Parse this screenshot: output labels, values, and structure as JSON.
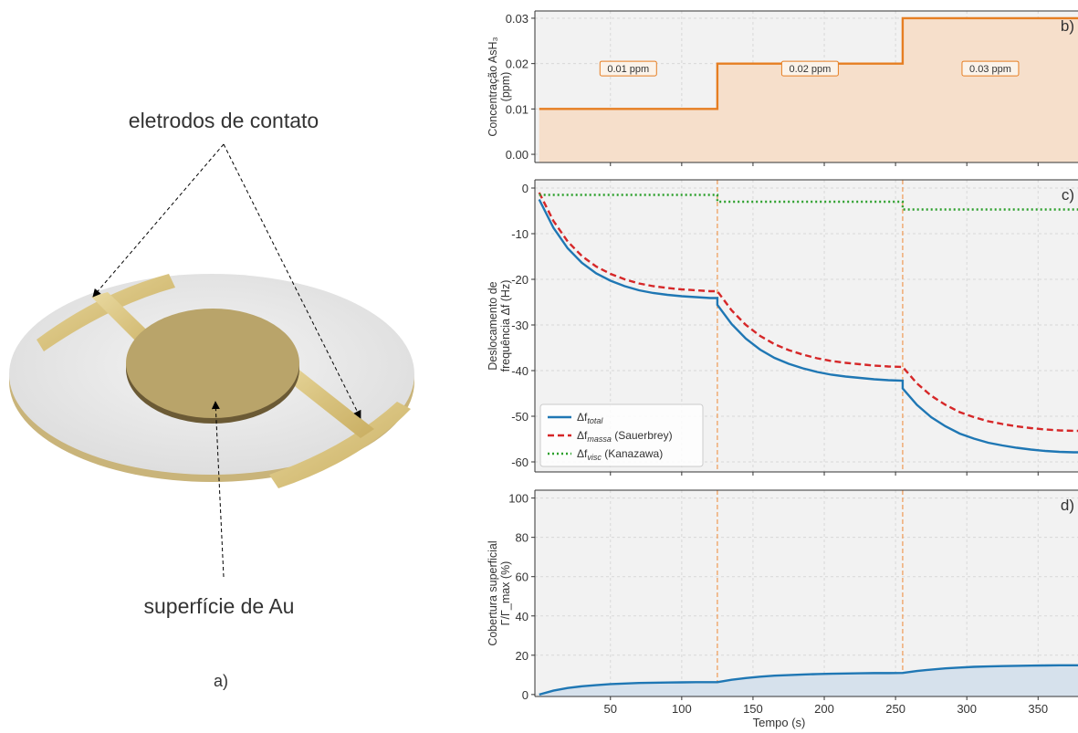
{
  "illustration": {
    "label_electrodes": "eletrodos de contato",
    "label_surface": "superfície de Au",
    "panel": "a)"
  },
  "chart_data": [
    {
      "type": "area",
      "panel": "b)",
      "ylabel": [
        "Concentração AsH₃",
        "(ppm)"
      ],
      "x": [
        0,
        125,
        125,
        255,
        255,
        378
      ],
      "xlim": [
        -3,
        378
      ],
      "xticks": [
        50,
        100,
        150,
        200,
        250,
        300,
        350
      ],
      "ylim": [
        -0.0018,
        0.0316
      ],
      "yticks": [
        {
          "value": 0,
          "label": "0.00"
        },
        0.01,
        0.02,
        0.03
      ],
      "grid": true,
      "series": [
        {
          "color": "#e67e22",
          "fill": "#f6dfcb",
          "dash": "solid",
          "values": [
            0.01,
            0.01,
            0.02,
            0.02,
            0.03,
            0.03
          ]
        }
      ],
      "annotations": [
        "0.01 ppm",
        "0.02 ppm",
        "0.03 ppm"
      ]
    },
    {
      "type": "line",
      "panel": "c)",
      "ylabel": [
        "Deslocamento de",
        "frequência Δf (Hz)"
      ],
      "x": [
        0,
        10,
        20,
        30,
        40,
        50,
        60,
        70,
        80,
        90,
        100,
        110,
        120,
        125,
        125,
        135,
        145,
        155,
        165,
        175,
        185,
        195,
        205,
        215,
        225,
        235,
        245,
        255,
        255,
        265,
        275,
        285,
        295,
        305,
        315,
        325,
        335,
        345,
        355,
        365,
        375,
        378
      ],
      "xlim": [
        -3,
        378
      ],
      "xticks": [
        50,
        100,
        150,
        200,
        250,
        300,
        350
      ],
      "ylim": [
        -62.2,
        1.8
      ],
      "yticks": [
        0,
        -10,
        -20,
        -30,
        -40,
        -50,
        -60
      ],
      "grid": true,
      "legend": "lower left",
      "vlines": [
        125,
        255
      ],
      "vline_color": "#f0a060",
      "series": [
        {
          "name": "Δf",
          "subscript": "total",
          "note": "",
          "color": "#1f77b4",
          "dash": "solid",
          "values": [
            -2.5,
            -8.7,
            -13.2,
            -16.4,
            -18.7,
            -20.3,
            -21.5,
            -22.4,
            -23.0,
            -23.4,
            -23.7,
            -23.9,
            -24.1,
            -24.1,
            -25.6,
            -29.8,
            -33.0,
            -35.4,
            -37.2,
            -38.5,
            -39.5,
            -40.3,
            -40.9,
            -41.3,
            -41.6,
            -41.9,
            -42.1,
            -42.2,
            -43.9,
            -47.5,
            -50.2,
            -52.2,
            -53.8,
            -54.9,
            -55.8,
            -56.4,
            -56.9,
            -57.3,
            -57.6,
            -57.8,
            -57.9,
            -57.9
          ]
        },
        {
          "name": "Δf",
          "subscript": "massa",
          "note": " (Sauerbrey)",
          "color": "#d62728",
          "dash": "dashed",
          "values": [
            -1,
            -7.2,
            -11.7,
            -14.9,
            -17.2,
            -18.8,
            -20.0,
            -20.9,
            -21.5,
            -21.9,
            -22.2,
            -22.4,
            -22.6,
            -22.6,
            -22.6,
            -26.8,
            -30.0,
            -32.4,
            -34.2,
            -35.5,
            -36.5,
            -37.3,
            -37.9,
            -38.3,
            -38.6,
            -38.9,
            -39.1,
            -39.2,
            -39.2,
            -42.8,
            -45.5,
            -47.5,
            -49.1,
            -50.2,
            -51.1,
            -51.7,
            -52.2,
            -52.6,
            -52.9,
            -53.1,
            -53.2,
            -53.2
          ]
        },
        {
          "name": "Δf",
          "subscript": "visc",
          "note": " (Kanazawa)",
          "color": "#2ca02c",
          "dash": "dotted",
          "values": [
            -1.5,
            -1.5,
            -1.5,
            -1.5,
            -1.5,
            -1.5,
            -1.5,
            -1.5,
            -1.5,
            -1.5,
            -1.5,
            -1.5,
            -1.5,
            -1.5,
            -3,
            -3,
            -3,
            -3,
            -3,
            -3,
            -3,
            -3,
            -3,
            -3,
            -3,
            -3,
            -3,
            -3,
            -4.7,
            -4.7,
            -4.7,
            -4.7,
            -4.7,
            -4.7,
            -4.7,
            -4.7,
            -4.7,
            -4.7,
            -4.7,
            -4.7,
            -4.7,
            -4.7
          ]
        }
      ]
    },
    {
      "type": "area",
      "panel": "d)",
      "ylabel": [
        "Cobertura superficial",
        "Γ/Γ_max (%)"
      ],
      "xlabel": "Tempo (s)",
      "x": [
        0,
        10,
        20,
        30,
        40,
        50,
        60,
        70,
        80,
        90,
        100,
        110,
        120,
        125,
        125,
        135,
        145,
        155,
        165,
        175,
        185,
        195,
        205,
        215,
        225,
        235,
        245,
        255,
        255,
        265,
        275,
        285,
        295,
        305,
        315,
        325,
        335,
        345,
        355,
        365,
        375,
        378
      ],
      "xlim": [
        -3,
        378
      ],
      "xticks": [
        50,
        100,
        150,
        200,
        250,
        300,
        350
      ],
      "ylim": [
        -1,
        104
      ],
      "yticks": [
        0,
        20,
        40,
        60,
        80,
        100
      ],
      "grid": true,
      "vlines": [
        125,
        255
      ],
      "vline_color": "#f0a060",
      "series": [
        {
          "color": "#1f77b4",
          "fill": "#d6e1ec",
          "dash": "solid",
          "values": [
            0,
            2.0,
            3.3,
            4.2,
            4.8,
            5.3,
            5.6,
            5.9,
            6.0,
            6.1,
            6.2,
            6.3,
            6.3,
            6.3,
            6.3,
            7.5,
            8.4,
            9.1,
            9.6,
            9.9,
            10.2,
            10.4,
            10.6,
            10.7,
            10.8,
            10.9,
            10.9,
            11.0,
            11.0,
            12.0,
            12.7,
            13.3,
            13.7,
            14.1,
            14.3,
            14.5,
            14.6,
            14.7,
            14.8,
            14.9,
            14.9,
            14.9
          ]
        }
      ]
    }
  ]
}
